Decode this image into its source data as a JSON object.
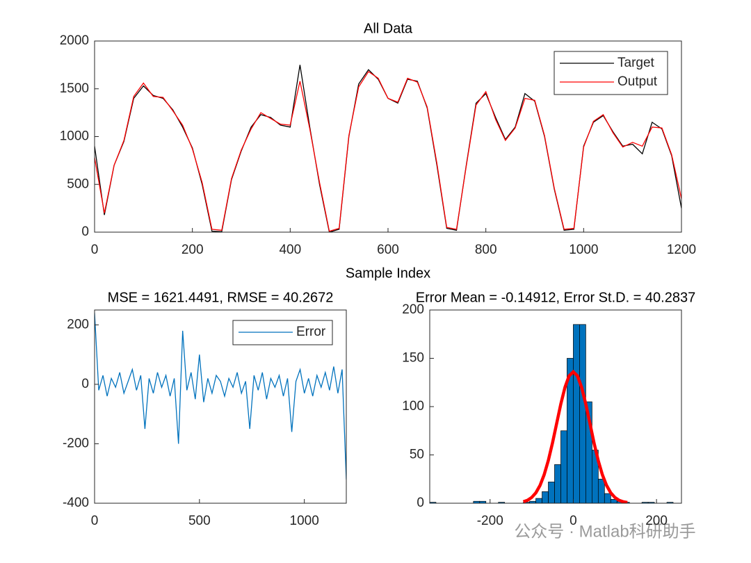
{
  "chart_data": [
    {
      "type": "line",
      "title": "All Data",
      "x_label": "Sample Index",
      "x": [
        0,
        20,
        40,
        60,
        80,
        100,
        120,
        140,
        160,
        180,
        200,
        220,
        240,
        260,
        280,
        300,
        320,
        340,
        360,
        380,
        400,
        420,
        440,
        460,
        480,
        500,
        520,
        540,
        560,
        580,
        600,
        620,
        640,
        660,
        680,
        700,
        720,
        740,
        760,
        780,
        800,
        820,
        840,
        860,
        880,
        900,
        920,
        940,
        960,
        980,
        1000,
        1020,
        1040,
        1060,
        1080,
        1100,
        1120,
        1140,
        1160,
        1180,
        1200
      ],
      "series": [
        {
          "name": "Target",
          "color": "#000000",
          "values": [
            900,
            180,
            700,
            950,
            1400,
            1530,
            1430,
            1400,
            1280,
            1100,
            880,
            500,
            10,
            5,
            550,
            850,
            1100,
            1230,
            1200,
            1120,
            1100,
            1750,
            1100,
            500,
            0,
            30,
            1000,
            1550,
            1700,
            1600,
            1400,
            1350,
            1600,
            1580,
            1300,
            700,
            40,
            20,
            700,
            1350,
            1450,
            1200,
            970,
            1100,
            1450,
            1370,
            1000,
            450,
            20,
            30,
            900,
            1150,
            1220,
            1050,
            900,
            920,
            820,
            1150,
            1080,
            800,
            250
          ]
        },
        {
          "name": "Output",
          "color": "#ff0000",
          "values": [
            780,
            200,
            700,
            960,
            1420,
            1560,
            1420,
            1410,
            1270,
            1120,
            870,
            520,
            30,
            20,
            560,
            860,
            1080,
            1250,
            1190,
            1130,
            1120,
            1580,
            1080,
            520,
            10,
            40,
            1010,
            1520,
            1680,
            1610,
            1400,
            1360,
            1610,
            1570,
            1310,
            720,
            50,
            30,
            690,
            1330,
            1470,
            1180,
            960,
            1090,
            1400,
            1380,
            1010,
            460,
            30,
            40,
            890,
            1160,
            1230,
            1040,
            890,
            940,
            900,
            1100,
            1090,
            810,
            350
          ]
        }
      ],
      "xlim": [
        0,
        1200
      ],
      "ylim": [
        0,
        2000
      ],
      "xticks": [
        0,
        200,
        400,
        600,
        800,
        1000,
        1200
      ],
      "yticks": [
        0,
        500,
        1000,
        1500,
        2000
      ],
      "legend": "northeast"
    },
    {
      "type": "line",
      "title": "MSE = 1621.4491, RMSE = 40.2672",
      "x": [
        0,
        20,
        40,
        60,
        80,
        100,
        120,
        140,
        160,
        180,
        200,
        220,
        240,
        260,
        280,
        300,
        320,
        340,
        360,
        380,
        400,
        420,
        440,
        460,
        480,
        500,
        520,
        540,
        560,
        580,
        600,
        620,
        640,
        660,
        680,
        700,
        720,
        740,
        760,
        780,
        800,
        820,
        840,
        860,
        880,
        900,
        920,
        940,
        960,
        980,
        1000,
        1020,
        1040,
        1060,
        1080,
        1100,
        1120,
        1140,
        1160,
        1180,
        1200
      ],
      "series": [
        {
          "name": "Error",
          "color": "#0072bd",
          "values": [
            240,
            -20,
            30,
            -40,
            20,
            -10,
            40,
            -30,
            10,
            50,
            -20,
            30,
            -150,
            20,
            -30,
            40,
            -10,
            30,
            -40,
            20,
            -200,
            180,
            -20,
            40,
            -50,
            100,
            -60,
            20,
            -30,
            30,
            10,
            -40,
            20,
            -10,
            40,
            -30,
            10,
            -150,
            30,
            -20,
            40,
            -50,
            20,
            -10,
            30,
            -40,
            20,
            -160,
            10,
            50,
            -30,
            20,
            -40,
            30,
            -10,
            40,
            -20,
            60,
            -30,
            50,
            -320
          ]
        }
      ],
      "xlim": [
        0,
        1200
      ],
      "ylim": [
        -400,
        250
      ],
      "xticks": [
        0,
        500,
        1000
      ],
      "yticks": [
        -400,
        -200,
        0,
        200
      ],
      "legend": "northeast"
    },
    {
      "type": "histogram",
      "title": "Error Mean = -0.14912, Error St.D. = 40.2837",
      "bins": [
        -345,
        -330,
        -315,
        -300,
        -285,
        -270,
        -255,
        -240,
        -225,
        -210,
        -195,
        -180,
        -165,
        -150,
        -135,
        -120,
        -105,
        -90,
        -75,
        -60,
        -45,
        -30,
        -15,
        0,
        15,
        30,
        45,
        60,
        75,
        90,
        105,
        120,
        135,
        150,
        165,
        180,
        195,
        210,
        225,
        240,
        255
      ],
      "values": [
        1,
        0,
        0,
        0,
        0,
        0,
        0,
        2,
        2,
        0,
        0,
        1,
        0,
        0,
        0,
        1,
        2,
        5,
        12,
        22,
        40,
        75,
        150,
        185,
        185,
        105,
        55,
        25,
        10,
        4,
        2,
        1,
        0,
        0,
        1,
        1,
        0,
        0,
        1,
        0
      ],
      "color": "#0072bd",
      "fit": {
        "color": "#ff0000",
        "x": [
          -120,
          -110,
          -100,
          -90,
          -80,
          -70,
          -60,
          -50,
          -40,
          -30,
          -20,
          -10,
          0,
          10,
          20,
          30,
          40,
          50,
          60,
          70,
          80,
          90,
          100,
          110,
          120,
          130
        ],
        "values": [
          1.5,
          3.1,
          6.0,
          10.8,
          18.4,
          29.4,
          44.2,
          62.3,
          82.5,
          102.7,
          120,
          131.8,
          136,
          131.8,
          120,
          102.7,
          82.5,
          62.3,
          44.2,
          29.4,
          18.4,
          10.8,
          6.0,
          3.1,
          1.5,
          0.7
        ]
      },
      "xlim": [
        -345,
        260
      ],
      "ylim": [
        0,
        200
      ],
      "xticks": [
        -200,
        0,
        200
      ],
      "yticks": [
        0,
        50,
        100,
        150,
        200
      ]
    }
  ],
  "watermark": "公众号 · Matlab科研助手"
}
